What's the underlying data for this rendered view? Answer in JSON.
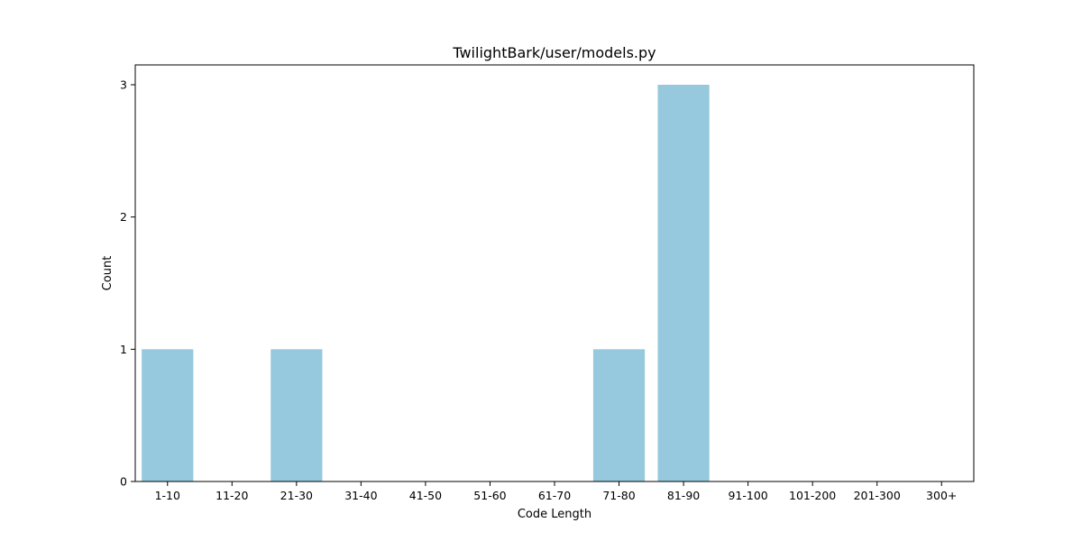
{
  "chart_data": {
    "type": "bar",
    "title": "TwilightBark/user/models.py",
    "xlabel": "Code Length",
    "ylabel": "Count",
    "categories": [
      "1-10",
      "11-20",
      "21-30",
      "31-40",
      "41-50",
      "51-60",
      "61-70",
      "71-80",
      "81-90",
      "91-100",
      "101-200",
      "201-300",
      "300+"
    ],
    "values": [
      1,
      0,
      1,
      0,
      0,
      0,
      0,
      1,
      3,
      0,
      0,
      0,
      0
    ],
    "ylim": [
      0,
      3.15
    ],
    "yticks": [
      0,
      1,
      2,
      3
    ],
    "bar_color": "#96c9de",
    "grid": false,
    "legend": "none"
  }
}
